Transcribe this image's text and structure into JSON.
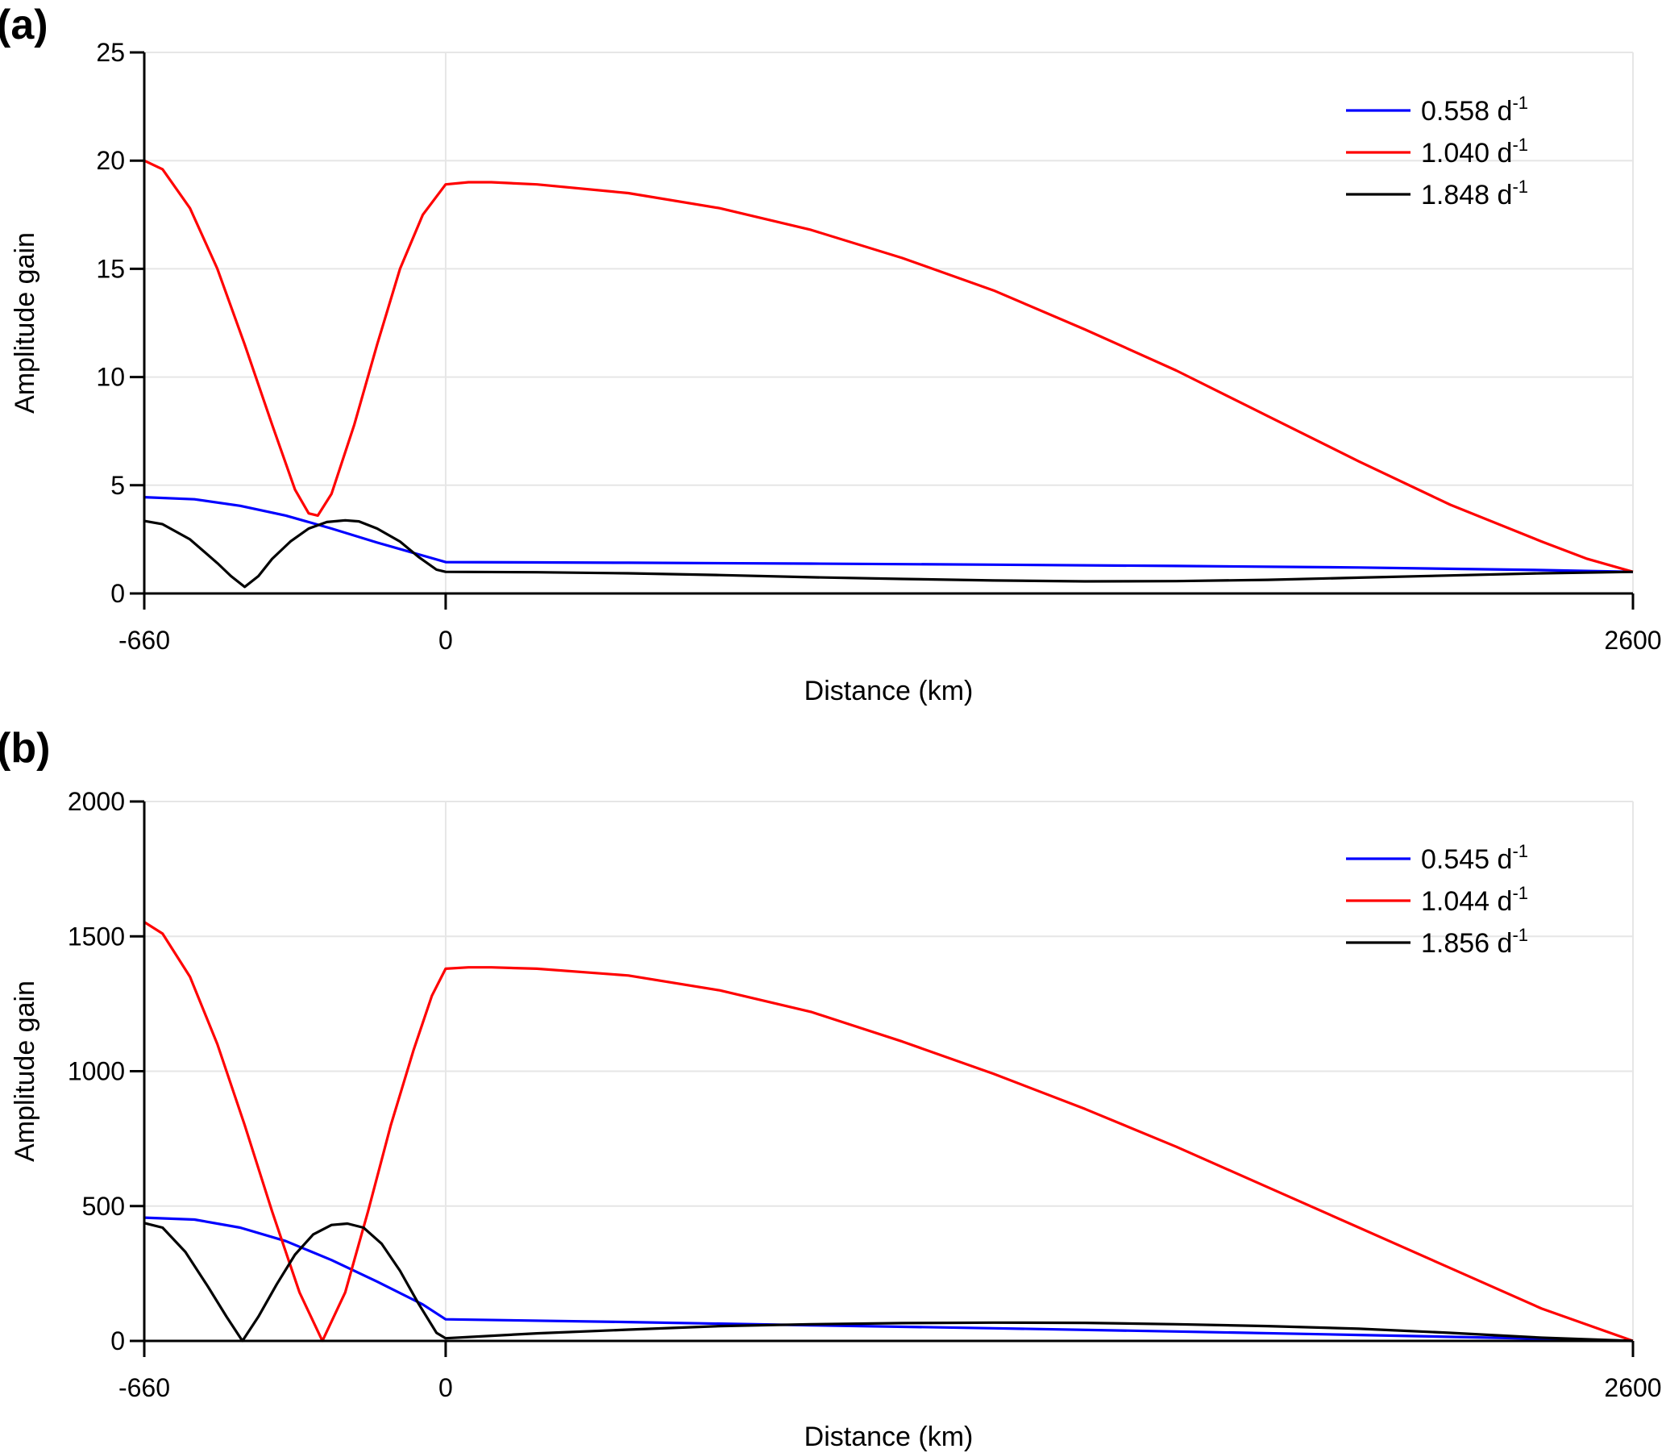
{
  "chart_data": [
    {
      "id": "a",
      "type": "line",
      "panel_label": "(a)",
      "xlabel": "Distance (km)",
      "ylabel": "Amplitude gain",
      "xlim": [
        -660,
        2600
      ],
      "ylim": [
        0,
        25
      ],
      "x_ticks": [
        -660,
        0,
        2600
      ],
      "x_tick_labels": [
        "-660",
        "0",
        "2600"
      ],
      "y_ticks": [
        0,
        5,
        10,
        15,
        20,
        25
      ],
      "y_tick_labels": [
        "0",
        "5",
        "10",
        "15",
        "20",
        "25"
      ],
      "grid": true,
      "legend_position": "top-right",
      "series": [
        {
          "name": "0.558 d",
          "name_sup": "-1",
          "color": "#0000ff",
          "x": [
            -660,
            -550,
            -450,
            -350,
            -250,
            -150,
            -50,
            0,
            400,
            800,
            1200,
            1600,
            2000,
            2400,
            2600
          ],
          "y": [
            4.45,
            4.35,
            4.05,
            3.6,
            3.0,
            2.35,
            1.75,
            1.45,
            1.42,
            1.38,
            1.33,
            1.27,
            1.2,
            1.08,
            1.0
          ]
        },
        {
          "name": "1.040 d",
          "name_sup": "-1",
          "color": "#ff0000",
          "x": [
            -660,
            -620,
            -560,
            -500,
            -440,
            -380,
            -330,
            -300,
            -280,
            -250,
            -200,
            -150,
            -100,
            -50,
            0,
            50,
            100,
            200,
            400,
            600,
            800,
            1000,
            1200,
            1400,
            1600,
            1800,
            2000,
            2200,
            2400,
            2500,
            2600
          ],
          "y": [
            20.0,
            19.6,
            17.8,
            15.0,
            11.5,
            7.8,
            4.8,
            3.7,
            3.6,
            4.6,
            7.8,
            11.5,
            15.0,
            17.5,
            18.9,
            19.0,
            19.0,
            18.9,
            18.5,
            17.8,
            16.8,
            15.5,
            14.0,
            12.2,
            10.3,
            8.2,
            6.1,
            4.1,
            2.4,
            1.6,
            1.0
          ]
        },
        {
          "name": "1.848 d",
          "name_sup": "-1",
          "color": "#000000",
          "x": [
            -660,
            -620,
            -560,
            -500,
            -470,
            -440,
            -410,
            -380,
            -340,
            -300,
            -260,
            -220,
            -190,
            -150,
            -100,
            -60,
            -20,
            0,
            200,
            400,
            600,
            800,
            1000,
            1200,
            1400,
            1600,
            1800,
            2000,
            2200,
            2400,
            2600
          ],
          "y": [
            3.35,
            3.2,
            2.5,
            1.4,
            0.8,
            0.3,
            0.8,
            1.6,
            2.4,
            3.0,
            3.3,
            3.38,
            3.33,
            3.0,
            2.4,
            1.7,
            1.1,
            1.0,
            0.98,
            0.93,
            0.85,
            0.75,
            0.67,
            0.6,
            0.56,
            0.57,
            0.63,
            0.73,
            0.83,
            0.93,
            1.0
          ]
        }
      ]
    },
    {
      "id": "b",
      "type": "line",
      "panel_label": "(b)",
      "xlabel": "Distance (km)",
      "ylabel": "Amplitude gain",
      "xlim": [
        -660,
        2600
      ],
      "ylim": [
        0,
        2000
      ],
      "x_ticks": [
        -660,
        0,
        2600
      ],
      "x_tick_labels": [
        "-660",
        "0",
        "2600"
      ],
      "y_ticks": [
        0,
        500,
        1000,
        1500,
        2000
      ],
      "y_tick_labels": [
        "0",
        "500",
        "1000",
        "1500",
        "2000"
      ],
      "grid": true,
      "legend_position": "top-right",
      "series": [
        {
          "name": "0.545 d",
          "name_sup": "-1",
          "color": "#0000ff",
          "x": [
            -660,
            -550,
            -450,
            -350,
            -250,
            -150,
            -50,
            0,
            400,
            800,
            1200,
            1600,
            2000,
            2400,
            2600
          ],
          "y": [
            457,
            450,
            420,
            370,
            300,
            220,
            135,
            80,
            70,
            58,
            47,
            35,
            22,
            8,
            0
          ]
        },
        {
          "name": "1.044 d",
          "name_sup": "-1",
          "color": "#ff0000",
          "x": [
            -660,
            -620,
            -560,
            -500,
            -440,
            -380,
            -320,
            -270,
            -220,
            -170,
            -120,
            -70,
            -30,
            0,
            50,
            100,
            200,
            400,
            600,
            800,
            1000,
            1200,
            1400,
            1600,
            1800,
            2000,
            2200,
            2400,
            2600
          ],
          "y": [
            1553,
            1510,
            1350,
            1100,
            800,
            480,
            180,
            0,
            180,
            480,
            800,
            1080,
            1280,
            1380,
            1385,
            1385,
            1380,
            1355,
            1300,
            1220,
            1110,
            990,
            860,
            720,
            570,
            420,
            270,
            120,
            0
          ]
        },
        {
          "name": "1.856 d",
          "name_sup": "-1",
          "color": "#000000",
          "x": [
            -660,
            -620,
            -570,
            -520,
            -480,
            -445,
            -410,
            -370,
            -330,
            -290,
            -250,
            -215,
            -180,
            -140,
            -100,
            -60,
            -20,
            0,
            200,
            400,
            600,
            800,
            1000,
            1200,
            1400,
            1600,
            1800,
            2000,
            2200,
            2400,
            2600
          ],
          "y": [
            437,
            420,
            330,
            200,
            90,
            0,
            90,
            210,
            320,
            395,
            430,
            435,
            420,
            360,
            260,
            140,
            30,
            10,
            28,
            42,
            55,
            62,
            66,
            68,
            67,
            62,
            55,
            45,
            30,
            12,
            0
          ]
        }
      ]
    }
  ]
}
